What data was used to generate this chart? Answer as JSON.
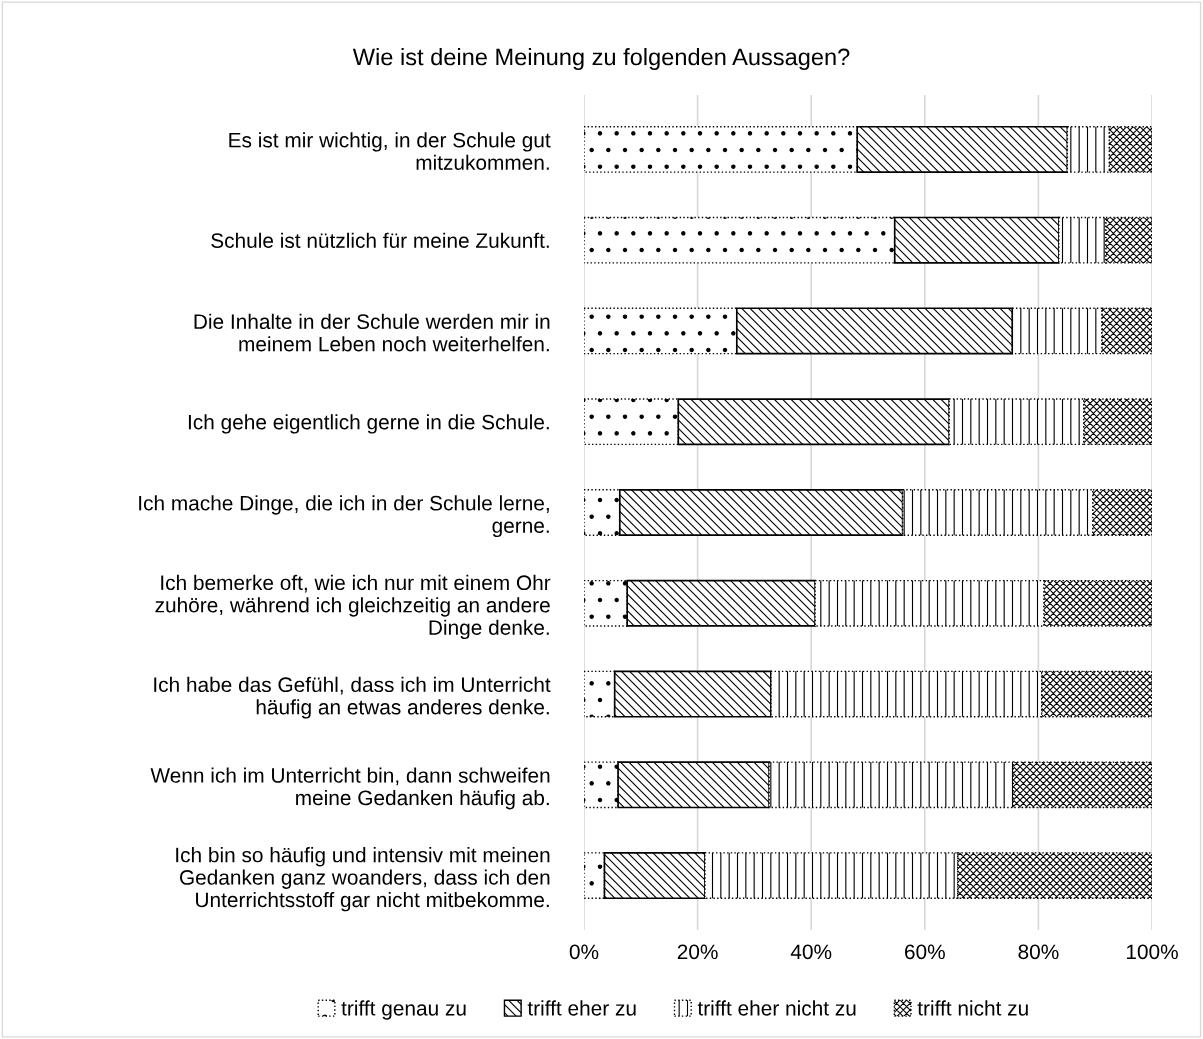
{
  "chart_data": {
    "type": "bar",
    "orientation": "horizontal",
    "stacked": true,
    "title": "Wie ist deine Meinung zu folgenden Aussagen?",
    "categories": [
      "Es ist mir wichtig, in der Schule gut\nmitzukommen.",
      "Schule ist nützlich für meine Zukunft.",
      "Die Inhalte in der Schule werden mir in\nmeinem Leben noch weiterhelfen.",
      "Ich gehe eigentlich gerne in die Schule.",
      "Ich mache Dinge, die ich in der Schule lerne,\ngerne.",
      "Ich bemerke oft, wie ich nur mit einem Ohr\nzuhöre, während ich gleichzeitig an andere\nDinge denke.",
      "Ich habe das Gefühl, dass ich im Unterricht\nhäufig an etwas anderes denke.",
      "Wenn ich im Unterricht bin, dann schweifen\nmeine Gedanken häufig ab.",
      "Ich bin so häufig und intensiv mit meinen\nGedanken ganz woanders, dass ich den\nUnterrichtsstoff gar nicht mitbekomme."
    ],
    "series": [
      {
        "name": "trifft genau zu",
        "color": "#000000",
        "values": [
          48.1,
          54.7,
          26.9,
          16.6,
          6.3,
          7.6,
          5.4,
          6.0,
          3.6
        ]
      },
      {
        "name": "trifft eher zu",
        "color": "#000000",
        "values": [
          37.0,
          28.9,
          48.5,
          47.7,
          49.8,
          33.1,
          27.5,
          26.6,
          17.7
        ]
      },
      {
        "name": "trifft eher nicht zu",
        "color": "#000000",
        "values": [
          7.4,
          8.3,
          15.8,
          23.7,
          33.5,
          40.3,
          47.7,
          43.0,
          44.5
        ]
      },
      {
        "name": "trifft nicht zu",
        "color": "#000000",
        "values": [
          7.5,
          8.1,
          8.8,
          12.0,
          10.4,
          19.0,
          19.4,
          24.4,
          34.2
        ]
      }
    ],
    "xlim": [
      0,
      100
    ],
    "xticks": [
      {
        "value": 0,
        "label": "0%"
      },
      {
        "value": 20,
        "label": "20%"
      },
      {
        "value": 40,
        "label": "40%"
      },
      {
        "value": 60,
        "label": "60%"
      },
      {
        "value": 80,
        "label": "80%"
      },
      {
        "value": 100,
        "label": "100%"
      }
    ],
    "grid": "x",
    "legend": "bottom"
  }
}
